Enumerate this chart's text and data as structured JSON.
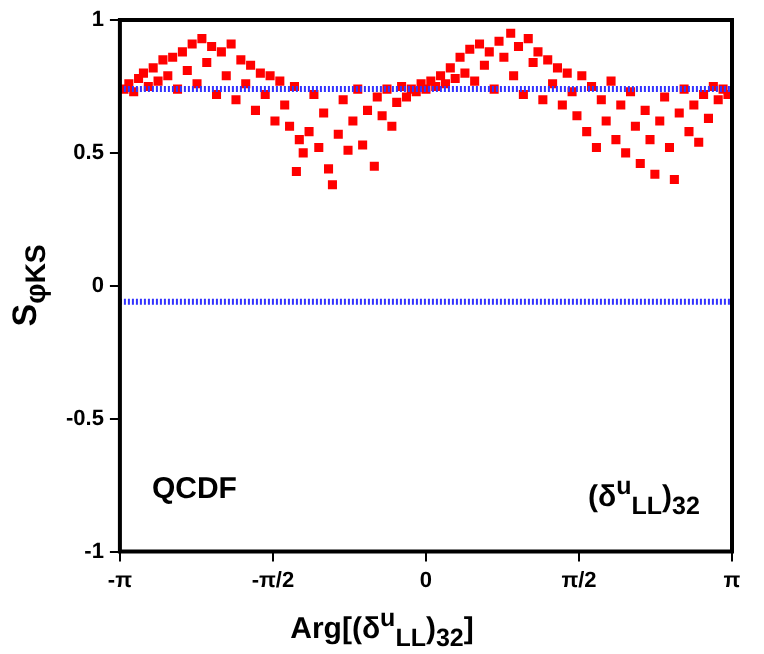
{
  "chart_data": {
    "type": "scatter",
    "xlabel": "Arg[(δ$^{u}$$_{LL}$)$_{32}$]",
    "ylabel": "S$_{φK}$$_{S}$",
    "annotations": [
      "QCDF",
      "(δ$^{u}$$_{LL}$)$_{32}$"
    ],
    "x": [
      -3.1,
      -3.05,
      -3.0,
      -2.95,
      -2.9,
      -2.85,
      -2.8,
      -2.75,
      -2.7,
      -2.65,
      -2.6,
      -2.55,
      -2.5,
      -2.45,
      -2.4,
      -2.35,
      -2.3,
      -2.25,
      -2.2,
      -2.15,
      -2.1,
      -2.05,
      -2.0,
      -1.95,
      -1.9,
      -1.85,
      -1.8,
      -1.75,
      -1.7,
      -1.65,
      -1.6,
      -1.55,
      -1.5,
      -1.45,
      -1.4,
      -1.35,
      -1.33,
      -1.3,
      -1.26,
      -1.2,
      -1.15,
      -1.1,
      -1.05,
      -1.0,
      -0.96,
      -0.9,
      -0.85,
      -0.8,
      -0.75,
      -0.7,
      -0.65,
      -0.6,
      -0.53,
      -0.5,
      -0.45,
      -0.4,
      -0.35,
      -0.3,
      -0.25,
      -0.2,
      -0.15,
      -0.1,
      -0.05,
      0.0,
      0.05,
      0.1,
      0.15,
      0.2,
      0.25,
      0.3,
      0.35,
      0.4,
      0.45,
      0.5,
      0.55,
      0.6,
      0.65,
      0.7,
      0.75,
      0.8,
      0.87,
      0.9,
      0.95,
      1.0,
      1.05,
      1.1,
      1.15,
      1.2,
      1.25,
      1.3,
      1.35,
      1.4,
      1.45,
      1.5,
      1.55,
      1.6,
      1.65,
      1.7,
      1.75,
      1.8,
      1.85,
      1.9,
      1.95,
      2.0,
      2.05,
      2.1,
      2.15,
      2.2,
      2.25,
      2.3,
      2.35,
      2.4,
      2.45,
      2.5,
      2.55,
      2.6,
      2.65,
      2.7,
      2.75,
      2.8,
      2.85,
      2.9,
      2.95,
      3.0,
      3.05,
      3.1
    ],
    "values": [
      0.74,
      0.76,
      0.73,
      0.78,
      0.8,
      0.75,
      0.82,
      0.77,
      0.85,
      0.79,
      0.86,
      0.74,
      0.88,
      0.81,
      0.91,
      0.76,
      0.93,
      0.84,
      0.9,
      0.72,
      0.88,
      0.79,
      0.91,
      0.7,
      0.85,
      0.76,
      0.83,
      0.66,
      0.8,
      0.72,
      0.79,
      0.62,
      0.77,
      0.68,
      0.6,
      0.75,
      0.43,
      0.55,
      0.5,
      0.58,
      0.72,
      0.52,
      0.65,
      0.44,
      0.38,
      0.57,
      0.7,
      0.51,
      0.62,
      0.74,
      0.53,
      0.66,
      0.45,
      0.71,
      0.64,
      0.74,
      0.6,
      0.69,
      0.75,
      0.71,
      0.74,
      0.73,
      0.76,
      0.74,
      0.77,
      0.75,
      0.79,
      0.76,
      0.82,
      0.78,
      0.86,
      0.8,
      0.89,
      0.77,
      0.91,
      0.83,
      0.88,
      0.74,
      0.92,
      0.86,
      0.95,
      0.79,
      0.9,
      0.72,
      0.93,
      0.84,
      0.88,
      0.7,
      0.85,
      0.76,
      0.82,
      0.68,
      0.8,
      0.73,
      0.64,
      0.79,
      0.58,
      0.75,
      0.52,
      0.7,
      0.62,
      0.77,
      0.55,
      0.68,
      0.5,
      0.73,
      0.6,
      0.46,
      0.66,
      0.55,
      0.42,
      0.62,
      0.71,
      0.52,
      0.4,
      0.65,
      0.74,
      0.58,
      0.68,
      0.54,
      0.72,
      0.63,
      0.75,
      0.7,
      0.74,
      0.72
    ],
    "color": "#ff0000",
    "marker": "square",
    "xlim": [
      -3.1416,
      3.1416
    ],
    "xticks": [
      {
        "value": -3.1416,
        "label": "-π"
      },
      {
        "value": -1.5708,
        "label": "-π/2"
      },
      0,
      {
        "value": 1.5708,
        "label": "π/2"
      },
      {
        "value": 3.1416,
        "label": "π"
      }
    ],
    "ylim": [
      -1,
      1
    ],
    "yticks": [
      -1,
      -0.5,
      0,
      0.5,
      1
    ],
    "ref_lines": [
      {
        "axis": "y",
        "value": 0.74,
        "color": "#3333ff",
        "line_style": "dotted"
      },
      {
        "axis": "y",
        "value": -0.06,
        "color": "#3333ff",
        "line_style": "dotted"
      }
    ],
    "grid": false,
    "legend": false
  }
}
